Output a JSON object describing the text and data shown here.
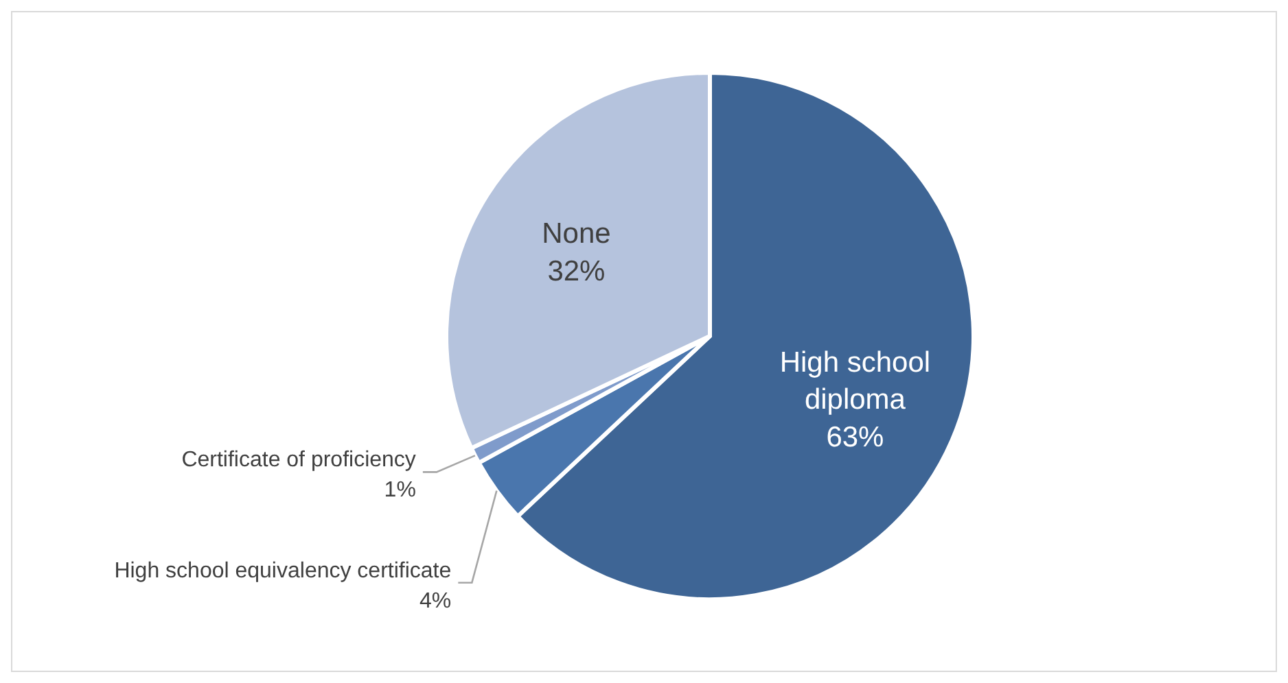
{
  "chart_data": {
    "type": "pie",
    "categories": [
      "High school diploma",
      "High school equivalency certificate",
      "Certificate of proficiency",
      "None"
    ],
    "values": [
      63,
      4,
      1,
      32
    ],
    "value_labels": [
      "63%",
      "4%",
      "1%",
      "32%"
    ],
    "colors": [
      "#3e6595",
      "#4a76ad",
      "#7f9bcb",
      "#b5c3dd"
    ]
  }
}
